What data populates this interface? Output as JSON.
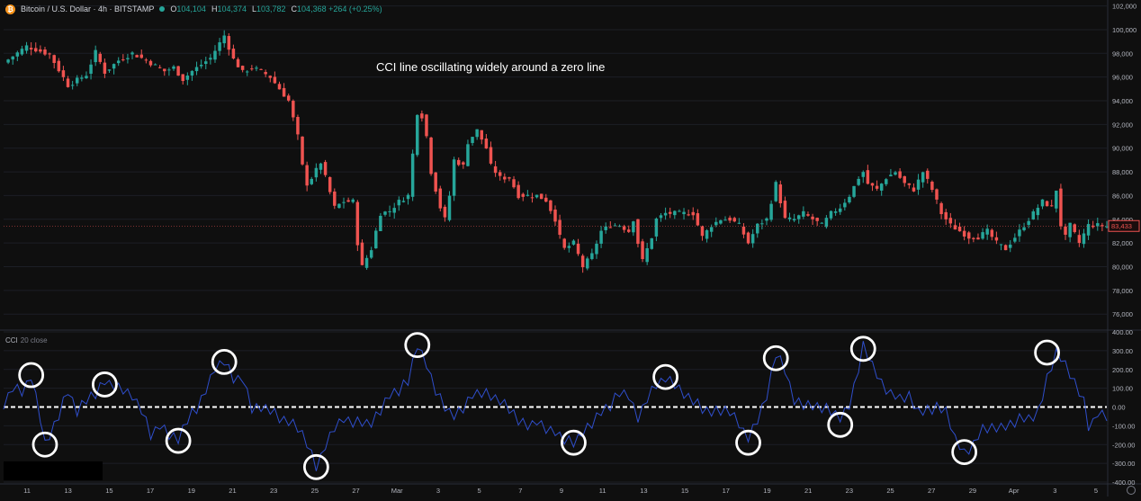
{
  "header": {
    "symbol": "Bitcoin / U.S. Dollar · 4h · BITSTAMP",
    "icon": "bitcoin-icon",
    "o_label": "O",
    "o_value": "104,104",
    "h_label": "H",
    "h_value": "104,374",
    "l_label": "L",
    "l_value": "103,782",
    "c_label": "C",
    "c_value": "104,368 +264 (+0.25%)"
  },
  "annotation": "CCI line oscillating widely around a zero line",
  "indicator": {
    "name": "CCI",
    "params": "20 close"
  },
  "colors": {
    "background": "#0f0f0f",
    "up": "#26a69a",
    "down": "#ef5350",
    "cci_line": "#2f4ecb",
    "zero_line": "#ffffff",
    "circle": "#ffffff",
    "last_price_label": "#ef5350"
  },
  "chart_data": [
    {
      "type": "candlestick",
      "title": "Bitcoin / U.S. Dollar · 4h · BITSTAMP",
      "ylim": [
        74800,
        102500
      ],
      "y_ticks": [
        76000,
        78000,
        80000,
        82000,
        84000,
        86000,
        88000,
        90000,
        92000,
        94000,
        96000,
        98000,
        100000,
        102000
      ],
      "y_tick_labels": [
        "76,000",
        "78,000",
        "80,000",
        "82,000",
        "84,000",
        "86,000",
        "88,000",
        "90,000",
        "92,000",
        "94,000",
        "96,000",
        "98,000",
        "100,000",
        "102,000"
      ],
      "last_price": 83433,
      "last_price_label": "83,433",
      "close_path": [
        [
          0,
          97200
        ],
        [
          5,
          98600
        ],
        [
          10,
          97900
        ],
        [
          14,
          95300
        ],
        [
          18,
          96200
        ],
        [
          20,
          98100
        ],
        [
          22,
          96400
        ],
        [
          25,
          97400
        ],
        [
          28,
          98000
        ],
        [
          31,
          97400
        ],
        [
          35,
          96500
        ],
        [
          37,
          96800
        ],
        [
          39,
          95800
        ],
        [
          41,
          96500
        ],
        [
          45,
          97600
        ],
        [
          48,
          99500
        ],
        [
          50,
          97500
        ],
        [
          52,
          96400
        ],
        [
          54,
          96800
        ],
        [
          56,
          96500
        ],
        [
          58,
          96000
        ],
        [
          62,
          94000
        ],
        [
          64,
          91000
        ],
        [
          65,
          88500
        ],
        [
          66,
          87000
        ],
        [
          67,
          87500
        ],
        [
          69,
          88800
        ],
        [
          72,
          85000
        ],
        [
          74,
          85500
        ],
        [
          76,
          85500
        ],
        [
          77,
          82000
        ],
        [
          78,
          80000
        ],
        [
          80,
          81500
        ],
        [
          82,
          84500
        ],
        [
          84,
          84700
        ],
        [
          86,
          85500
        ],
        [
          88,
          86000
        ],
        [
          89,
          89500
        ],
        [
          90,
          93000
        ],
        [
          91,
          92700
        ],
        [
          92,
          91000
        ],
        [
          93,
          88000
        ],
        [
          95,
          85000
        ],
        [
          96,
          84000
        ],
        [
          97,
          86000
        ],
        [
          98,
          89000
        ],
        [
          100,
          88500
        ],
        [
          101,
          90500
        ],
        [
          103,
          91500
        ],
        [
          105,
          90000
        ],
        [
          106,
          88500
        ],
        [
          108,
          87500
        ],
        [
          110,
          87500
        ],
        [
          112,
          86000
        ],
        [
          114,
          86000
        ],
        [
          116,
          86000
        ],
        [
          118,
          85600
        ],
        [
          120,
          84000
        ],
        [
          121,
          82500
        ],
        [
          122,
          81500
        ],
        [
          124,
          82000
        ],
        [
          126,
          80000
        ],
        [
          128,
          81000
        ],
        [
          130,
          83000
        ],
        [
          132,
          83500
        ],
        [
          134,
          83500
        ],
        [
          136,
          83000
        ],
        [
          137,
          84000
        ],
        [
          138,
          82000
        ],
        [
          139,
          80500
        ],
        [
          140,
          81500
        ],
        [
          141,
          82500
        ],
        [
          142,
          84000
        ],
        [
          144,
          84500
        ],
        [
          146,
          84500
        ],
        [
          148,
          84500
        ],
        [
          150,
          84500
        ],
        [
          152,
          82500
        ],
        [
          154,
          83500
        ],
        [
          156,
          84000
        ],
        [
          158,
          84000
        ],
        [
          160,
          83500
        ],
        [
          162,
          82000
        ],
        [
          164,
          83500
        ],
        [
          166,
          84000
        ],
        [
          168,
          87000
        ],
        [
          169,
          85500
        ],
        [
          170,
          84000
        ],
        [
          172,
          84000
        ],
        [
          174,
          84500
        ],
        [
          176,
          84000
        ],
        [
          178,
          83500
        ],
        [
          180,
          84500
        ],
        [
          182,
          85000
        ],
        [
          184,
          86000
        ],
        [
          186,
          87500
        ],
        [
          187,
          88000
        ],
        [
          188,
          87000
        ],
        [
          190,
          86500
        ],
        [
          192,
          87500
        ],
        [
          194,
          88000
        ],
        [
          196,
          87000
        ],
        [
          198,
          86500
        ],
        [
          200,
          88000
        ],
        [
          202,
          86500
        ],
        [
          204,
          84500
        ],
        [
          206,
          83500
        ],
        [
          208,
          83000
        ],
        [
          210,
          82500
        ],
        [
          212,
          82500
        ],
        [
          214,
          83000
        ],
        [
          216,
          82000
        ],
        [
          218,
          81500
        ],
        [
          220,
          82500
        ],
        [
          222,
          83500
        ],
        [
          224,
          84500
        ],
        [
          226,
          85500
        ],
        [
          228,
          85000
        ],
        [
          229,
          86500
        ],
        [
          230,
          83500
        ],
        [
          231,
          82500
        ],
        [
          232,
          83500
        ],
        [
          234,
          82000
        ],
        [
          236,
          83500
        ],
        [
          238,
          83500
        ],
        [
          240,
          83400
        ]
      ]
    },
    {
      "type": "line",
      "title": "CCI 20 close",
      "ylim": [
        -400,
        400
      ],
      "y_ticks": [
        -400,
        -300,
        -200,
        -100,
        0,
        100,
        200,
        300,
        400
      ],
      "y_tick_labels": [
        "-400.00",
        "-300.00",
        "-200.00",
        "-100.00",
        "0.00",
        "100.00",
        "200.00",
        "300.00",
        "400.00"
      ],
      "zero_line": 0,
      "x_tick_labels": [
        "11",
        "13",
        "15",
        "17",
        "19",
        "21",
        "23",
        "25",
        "27",
        "Mar",
        "3",
        "5",
        "7",
        "9",
        "11",
        "13",
        "15",
        "17",
        "19",
        "21",
        "23",
        "25",
        "27",
        "29",
        "Apr",
        "3",
        "5"
      ],
      "series": [
        {
          "values": [
            [
              0,
              0
            ],
            [
              2,
              100
            ],
            [
              4,
              80
            ],
            [
              6,
              170
            ],
            [
              8,
              -50
            ],
            [
              9,
              -200
            ],
            [
              10,
              -160
            ],
            [
              12,
              -50
            ],
            [
              14,
              90
            ],
            [
              16,
              -20
            ],
            [
              18,
              50
            ],
            [
              20,
              60
            ],
            [
              22,
              140
            ],
            [
              24,
              120
            ],
            [
              26,
              100
            ],
            [
              28,
              50
            ],
            [
              30,
              -20
            ],
            [
              32,
              -150
            ],
            [
              34,
              -90
            ],
            [
              36,
              -140
            ],
            [
              38,
              -180
            ],
            [
              40,
              -70
            ],
            [
              42,
              -10
            ],
            [
              44,
              100
            ],
            [
              46,
              200
            ],
            [
              48,
              240
            ],
            [
              50,
              150
            ],
            [
              52,
              160
            ],
            [
              54,
              0
            ],
            [
              56,
              -10
            ],
            [
              58,
              -20
            ],
            [
              60,
              -60
            ],
            [
              62,
              -70
            ],
            [
              64,
              -100
            ],
            [
              66,
              -200
            ],
            [
              68,
              -320
            ],
            [
              70,
              -200
            ],
            [
              72,
              -100
            ],
            [
              74,
              -70
            ],
            [
              76,
              -90
            ],
            [
              78,
              -80
            ],
            [
              80,
              -80
            ],
            [
              82,
              -10
            ],
            [
              84,
              60
            ],
            [
              86,
              80
            ],
            [
              88,
              140
            ],
            [
              90,
              340
            ],
            [
              92,
              220
            ],
            [
              94,
              80
            ],
            [
              96,
              0
            ],
            [
              98,
              -40
            ],
            [
              100,
              0
            ],
            [
              102,
              60
            ],
            [
              104,
              70
            ],
            [
              106,
              60
            ],
            [
              108,
              40
            ],
            [
              110,
              0
            ],
            [
              112,
              -80
            ],
            [
              114,
              -100
            ],
            [
              116,
              -70
            ],
            [
              118,
              -110
            ],
            [
              120,
              -140
            ],
            [
              122,
              -180
            ],
            [
              124,
              -190
            ],
            [
              126,
              -130
            ],
            [
              128,
              -80
            ],
            [
              130,
              -30
            ],
            [
              132,
              0
            ],
            [
              134,
              80
            ],
            [
              136,
              70
            ],
            [
              138,
              -70
            ],
            [
              140,
              40
            ],
            [
              142,
              120
            ],
            [
              144,
              160
            ],
            [
              146,
              130
            ],
            [
              148,
              60
            ],
            [
              150,
              30
            ],
            [
              152,
              -10
            ],
            [
              154,
              -20
            ],
            [
              156,
              -10
            ],
            [
              158,
              -30
            ],
            [
              160,
              -90
            ],
            [
              162,
              -160
            ],
            [
              164,
              -60
            ],
            [
              166,
              50
            ],
            [
              168,
              280
            ],
            [
              170,
              200
            ],
            [
              172,
              40
            ],
            [
              174,
              20
            ],
            [
              176,
              0
            ],
            [
              178,
              -10
            ],
            [
              180,
              -20
            ],
            [
              182,
              -50
            ],
            [
              184,
              0
            ],
            [
              186,
              200
            ],
            [
              187,
              320
            ],
            [
              189,
              230
            ],
            [
              191,
              130
            ],
            [
              193,
              70
            ],
            [
              195,
              40
            ],
            [
              197,
              50
            ],
            [
              199,
              -20
            ],
            [
              201,
              -10
            ],
            [
              203,
              0
            ],
            [
              205,
              -30
            ],
            [
              207,
              -160
            ],
            [
              209,
              -240
            ],
            [
              211,
              -200
            ],
            [
              213,
              -120
            ],
            [
              215,
              -120
            ],
            [
              217,
              -100
            ],
            [
              219,
              -90
            ],
            [
              221,
              -60
            ],
            [
              223,
              -70
            ],
            [
              225,
              -40
            ],
            [
              227,
              160
            ],
            [
              229,
              290
            ],
            [
              231,
              220
            ],
            [
              233,
              120
            ],
            [
              235,
              40
            ],
            [
              236,
              -100
            ],
            [
              237,
              -80
            ],
            [
              238,
              -20
            ],
            [
              239,
              -40
            ],
            [
              240,
              -60
            ]
          ]
        }
      ],
      "highlight_circles": [
        {
          "x": 6,
          "y": 170,
          "color": "#ffffff"
        },
        {
          "x": 9,
          "y": -200,
          "color": "#ffffff"
        },
        {
          "x": 22,
          "y": 120,
          "color": "#ffffff"
        },
        {
          "x": 38,
          "y": -180,
          "color": "#ffffff"
        },
        {
          "x": 48,
          "y": 240,
          "color": "#ffffff"
        },
        {
          "x": 68,
          "y": -320,
          "color": "#ffffff"
        },
        {
          "x": 90,
          "y": 330,
          "color": "#ffffff"
        },
        {
          "x": 124,
          "y": -190,
          "color": "#ffffff"
        },
        {
          "x": 144,
          "y": 160,
          "color": "#ffffff"
        },
        {
          "x": 162,
          "y": -190,
          "color": "#ffffff"
        },
        {
          "x": 168,
          "y": 260,
          "color": "#ffffff"
        },
        {
          "x": 182,
          "y": -95,
          "color": "#ffffff"
        },
        {
          "x": 187,
          "y": 310,
          "color": "#ffffff"
        },
        {
          "x": 209,
          "y": -240,
          "color": "#ffffff"
        },
        {
          "x": 227,
          "y": 290,
          "color": "#ffffff"
        }
      ]
    }
  ]
}
